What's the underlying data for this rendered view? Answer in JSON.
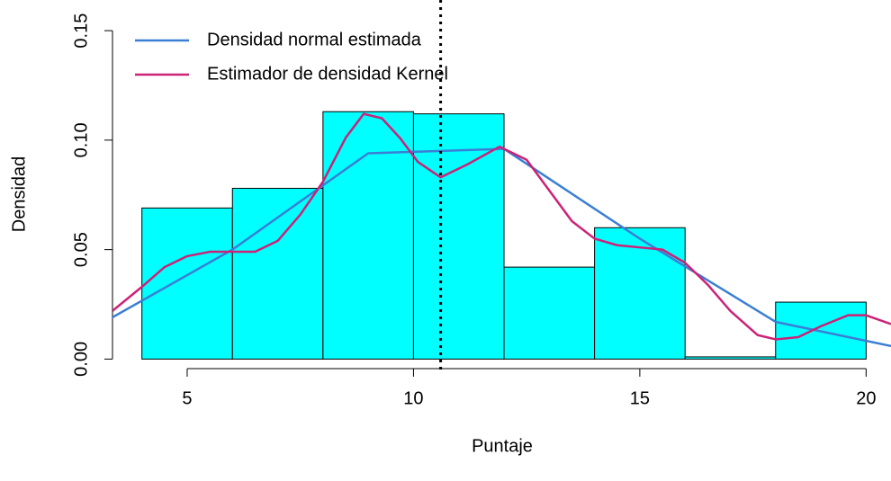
{
  "chart_data": {
    "type": "histogram",
    "x_label": "Puntaje",
    "y_label": "Densidad",
    "bins": [
      4,
      6,
      8,
      10,
      12,
      14,
      16,
      18,
      20
    ],
    "values": [
      0.069,
      0.078,
      0.113,
      0.112,
      0.042,
      0.06,
      0.001,
      0.026
    ],
    "color": "#00ffff",
    "xlim": [
      3.35,
      20.55
    ],
    "ylim": [
      -0.006,
      0.164
    ],
    "xticks": [
      5,
      10,
      15,
      20
    ],
    "yticks": [
      {
        "value": 0,
        "label": "0.00"
      },
      {
        "value": 0.05,
        "label": "0.05"
      },
      {
        "value": 0.1,
        "label": "0.10"
      },
      {
        "value": 0.15,
        "label": "0.15"
      }
    ],
    "vline": 10.6,
    "legend": "topleft",
    "series": [
      {
        "name": "Densidad normal estimada",
        "color": "#3a7fd5",
        "x": [
          3,
          6,
          9,
          12,
          15,
          18,
          21
        ],
        "values": [
          0.015,
          0.05,
          0.094,
          0.096,
          0.055,
          0.017,
          0.004
        ]
      },
      {
        "name": "Estimador de densidad Kernel",
        "color": "#cc2277",
        "x": [
          3.35,
          4,
          4.5,
          5,
          5.5,
          6,
          6.5,
          7,
          7.5,
          8,
          8.5,
          8.9,
          9.3,
          9.7,
          10.1,
          10.6,
          11.2,
          11.9,
          12.5,
          13,
          13.5,
          14,
          14.5,
          15,
          15.5,
          16,
          16.5,
          17,
          17.6,
          18,
          18.5,
          19,
          19.6,
          20,
          20.55
        ],
        "values": [
          0.022,
          0.033,
          0.042,
          0.047,
          0.049,
          0.049,
          0.049,
          0.054,
          0.066,
          0.081,
          0.101,
          0.112,
          0.11,
          0.101,
          0.09,
          0.083,
          0.089,
          0.097,
          0.091,
          0.077,
          0.063,
          0.055,
          0.052,
          0.051,
          0.05,
          0.044,
          0.034,
          0.022,
          0.011,
          0.009,
          0.01,
          0.015,
          0.02,
          0.02,
          0.016
        ]
      }
    ]
  }
}
